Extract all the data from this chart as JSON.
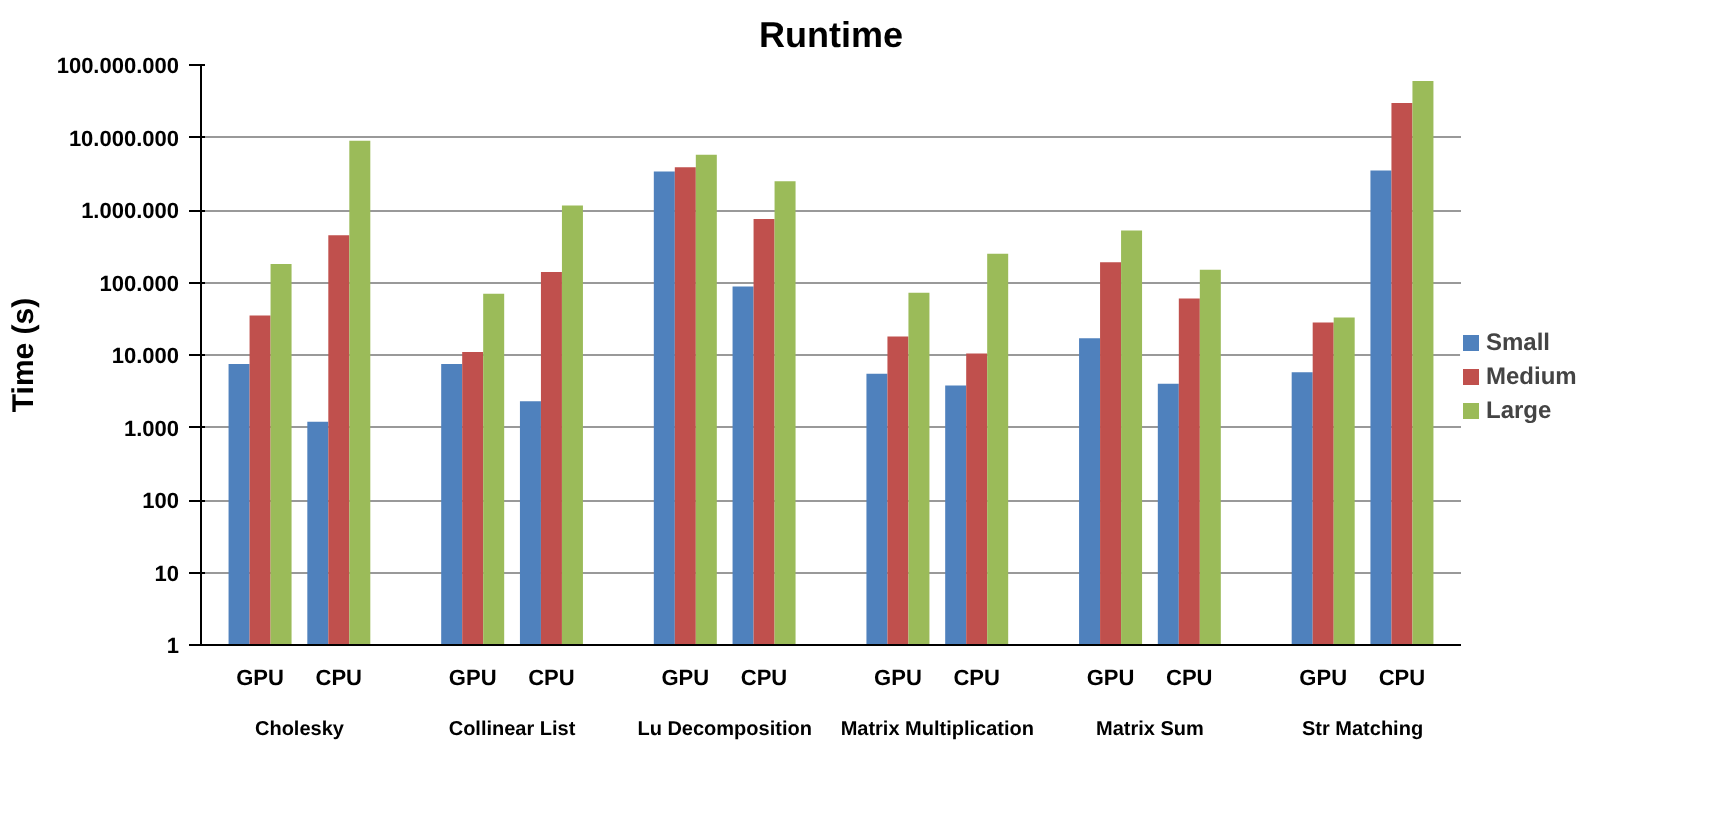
{
  "chart_data": {
    "type": "bar",
    "title": "Runtime",
    "ylabel": "Time (s)",
    "categories": [
      "GPU",
      "CPU",
      "GPU",
      "CPU",
      "GPU",
      "CPU",
      "GPU",
      "CPU",
      "GPU",
      "CPU",
      "GPU",
      "CPU"
    ],
    "annotations": [
      "Cholesky",
      "Collinear List",
      "Lu Decomposition",
      "Matrix Multiplication",
      "Matrix Sum",
      "Str Matching"
    ],
    "series": [
      {
        "name": "Small",
        "color": "#4f81bd",
        "values": [
          7500,
          1200,
          7500,
          2300,
          3400000,
          88000,
          5500,
          3800,
          17000,
          4000,
          5800,
          3500000
        ]
      },
      {
        "name": "Medium",
        "color": "#c0504d",
        "values": [
          35000,
          450000,
          11000,
          140000,
          3900000,
          750000,
          18000,
          10500,
          190000,
          60000,
          28000,
          30000000
        ]
      },
      {
        "name": "Large",
        "color": "#9bbb59",
        "values": [
          180000,
          9000000,
          70000,
          1150000,
          5800000,
          2500000,
          72000,
          250000,
          520000,
          150000,
          33000,
          60000000
        ]
      }
    ],
    "log": true,
    "ylim": [
      1,
      100000000
    ],
    "yticks": [
      1,
      10,
      100,
      {
        "value": 1000,
        "label": "1.000"
      },
      {
        "value": 10000,
        "label": "10.000"
      },
      {
        "value": 100000,
        "label": "100.000"
      },
      {
        "value": 1000000,
        "label": "1.000.000"
      },
      {
        "value": 10000000,
        "label": "10.000.000"
      },
      {
        "value": 100000000,
        "label": "100.000.000"
      }
    ],
    "grid": "y",
    "legend": "right"
  }
}
